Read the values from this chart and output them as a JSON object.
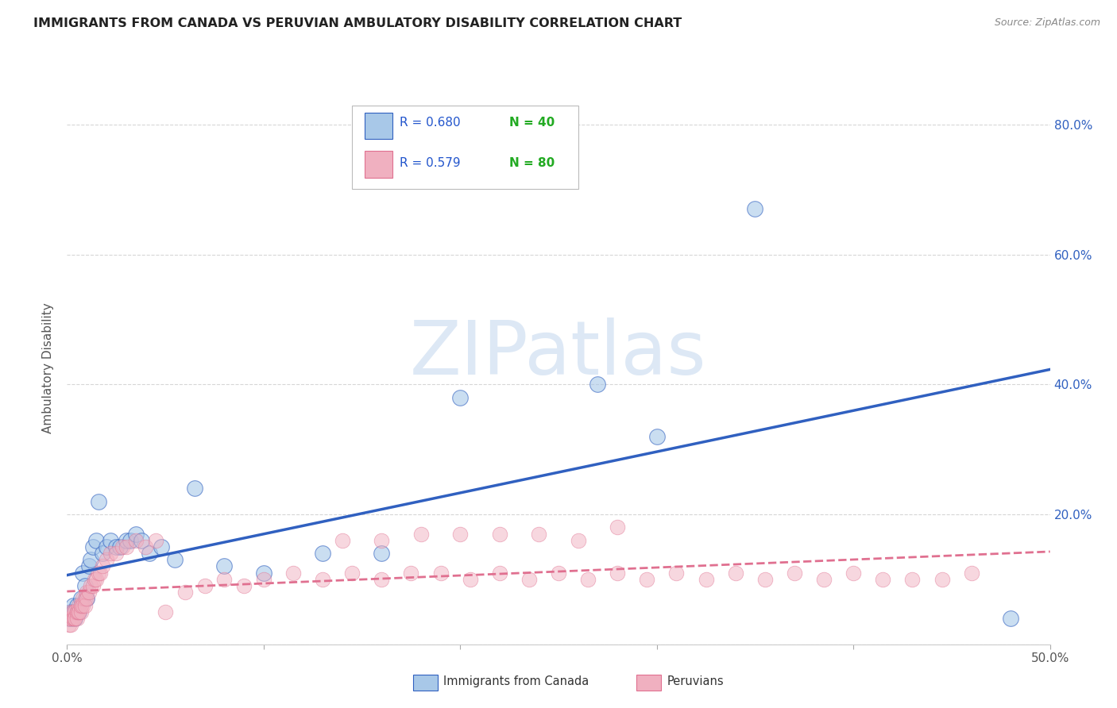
{
  "title": "IMMIGRANTS FROM CANADA VS PERUVIAN AMBULATORY DISABILITY CORRELATION CHART",
  "source": "Source: ZipAtlas.com",
  "ylabel": "Ambulatory Disability",
  "ytick_values": [
    0.0,
    0.2,
    0.4,
    0.6,
    0.8
  ],
  "xlim": [
    0.0,
    0.5
  ],
  "ylim": [
    0.0,
    0.85
  ],
  "legend_r1": "R = 0.680",
  "legend_n1": "N = 40",
  "legend_r2": "R = 0.579",
  "legend_n2": "N = 80",
  "legend_label1": "Immigrants from Canada",
  "legend_label2": "Peruvians",
  "color_blue": "#a8c8e8",
  "color_pink": "#f0b0c0",
  "color_blue_line": "#3060c0",
  "color_pink_line": "#e07090",
  "color_title": "#333333",
  "color_source": "#888888",
  "color_legend_text_r": "#2255cc",
  "color_legend_text_n": "#22aa22",
  "background": "#ffffff",
  "canada_x": [
    0.001,
    0.002,
    0.002,
    0.003,
    0.003,
    0.004,
    0.004,
    0.005,
    0.006,
    0.007,
    0.008,
    0.009,
    0.01,
    0.011,
    0.012,
    0.013,
    0.015,
    0.016,
    0.018,
    0.02,
    0.022,
    0.025,
    0.027,
    0.03,
    0.032,
    0.035,
    0.038,
    0.042,
    0.048,
    0.055,
    0.065,
    0.08,
    0.1,
    0.13,
    0.16,
    0.2,
    0.27,
    0.3,
    0.35,
    0.48
  ],
  "canada_y": [
    0.04,
    0.05,
    0.04,
    0.06,
    0.05,
    0.04,
    0.05,
    0.06,
    0.05,
    0.07,
    0.11,
    0.09,
    0.07,
    0.12,
    0.13,
    0.15,
    0.16,
    0.22,
    0.14,
    0.15,
    0.16,
    0.15,
    0.15,
    0.16,
    0.16,
    0.17,
    0.16,
    0.14,
    0.15,
    0.13,
    0.24,
    0.12,
    0.11,
    0.14,
    0.14,
    0.38,
    0.4,
    0.32,
    0.67,
    0.04
  ],
  "peru_x": [
    0.001,
    0.001,
    0.002,
    0.002,
    0.002,
    0.003,
    0.003,
    0.003,
    0.004,
    0.004,
    0.004,
    0.005,
    0.005,
    0.005,
    0.006,
    0.006,
    0.006,
    0.007,
    0.007,
    0.007,
    0.008,
    0.008,
    0.009,
    0.009,
    0.01,
    0.01,
    0.011,
    0.012,
    0.013,
    0.014,
    0.015,
    0.016,
    0.017,
    0.018,
    0.02,
    0.022,
    0.025,
    0.028,
    0.03,
    0.035,
    0.04,
    0.045,
    0.05,
    0.06,
    0.07,
    0.08,
    0.09,
    0.1,
    0.115,
    0.13,
    0.145,
    0.16,
    0.175,
    0.19,
    0.205,
    0.22,
    0.235,
    0.25,
    0.265,
    0.28,
    0.295,
    0.31,
    0.325,
    0.34,
    0.355,
    0.37,
    0.385,
    0.4,
    0.415,
    0.43,
    0.445,
    0.46,
    0.14,
    0.16,
    0.18,
    0.2,
    0.22,
    0.24,
    0.26,
    0.28
  ],
  "peru_y": [
    0.03,
    0.04,
    0.03,
    0.04,
    0.05,
    0.04,
    0.05,
    0.04,
    0.04,
    0.05,
    0.04,
    0.05,
    0.04,
    0.05,
    0.05,
    0.06,
    0.05,
    0.06,
    0.05,
    0.06,
    0.07,
    0.06,
    0.07,
    0.06,
    0.08,
    0.07,
    0.08,
    0.09,
    0.09,
    0.1,
    0.1,
    0.11,
    0.11,
    0.12,
    0.13,
    0.14,
    0.14,
    0.15,
    0.15,
    0.16,
    0.15,
    0.16,
    0.05,
    0.08,
    0.09,
    0.1,
    0.09,
    0.1,
    0.11,
    0.1,
    0.11,
    0.1,
    0.11,
    0.11,
    0.1,
    0.11,
    0.1,
    0.11,
    0.1,
    0.11,
    0.1,
    0.11,
    0.1,
    0.11,
    0.1,
    0.11,
    0.1,
    0.11,
    0.1,
    0.1,
    0.1,
    0.11,
    0.16,
    0.16,
    0.17,
    0.17,
    0.17,
    0.17,
    0.16,
    0.18
  ]
}
